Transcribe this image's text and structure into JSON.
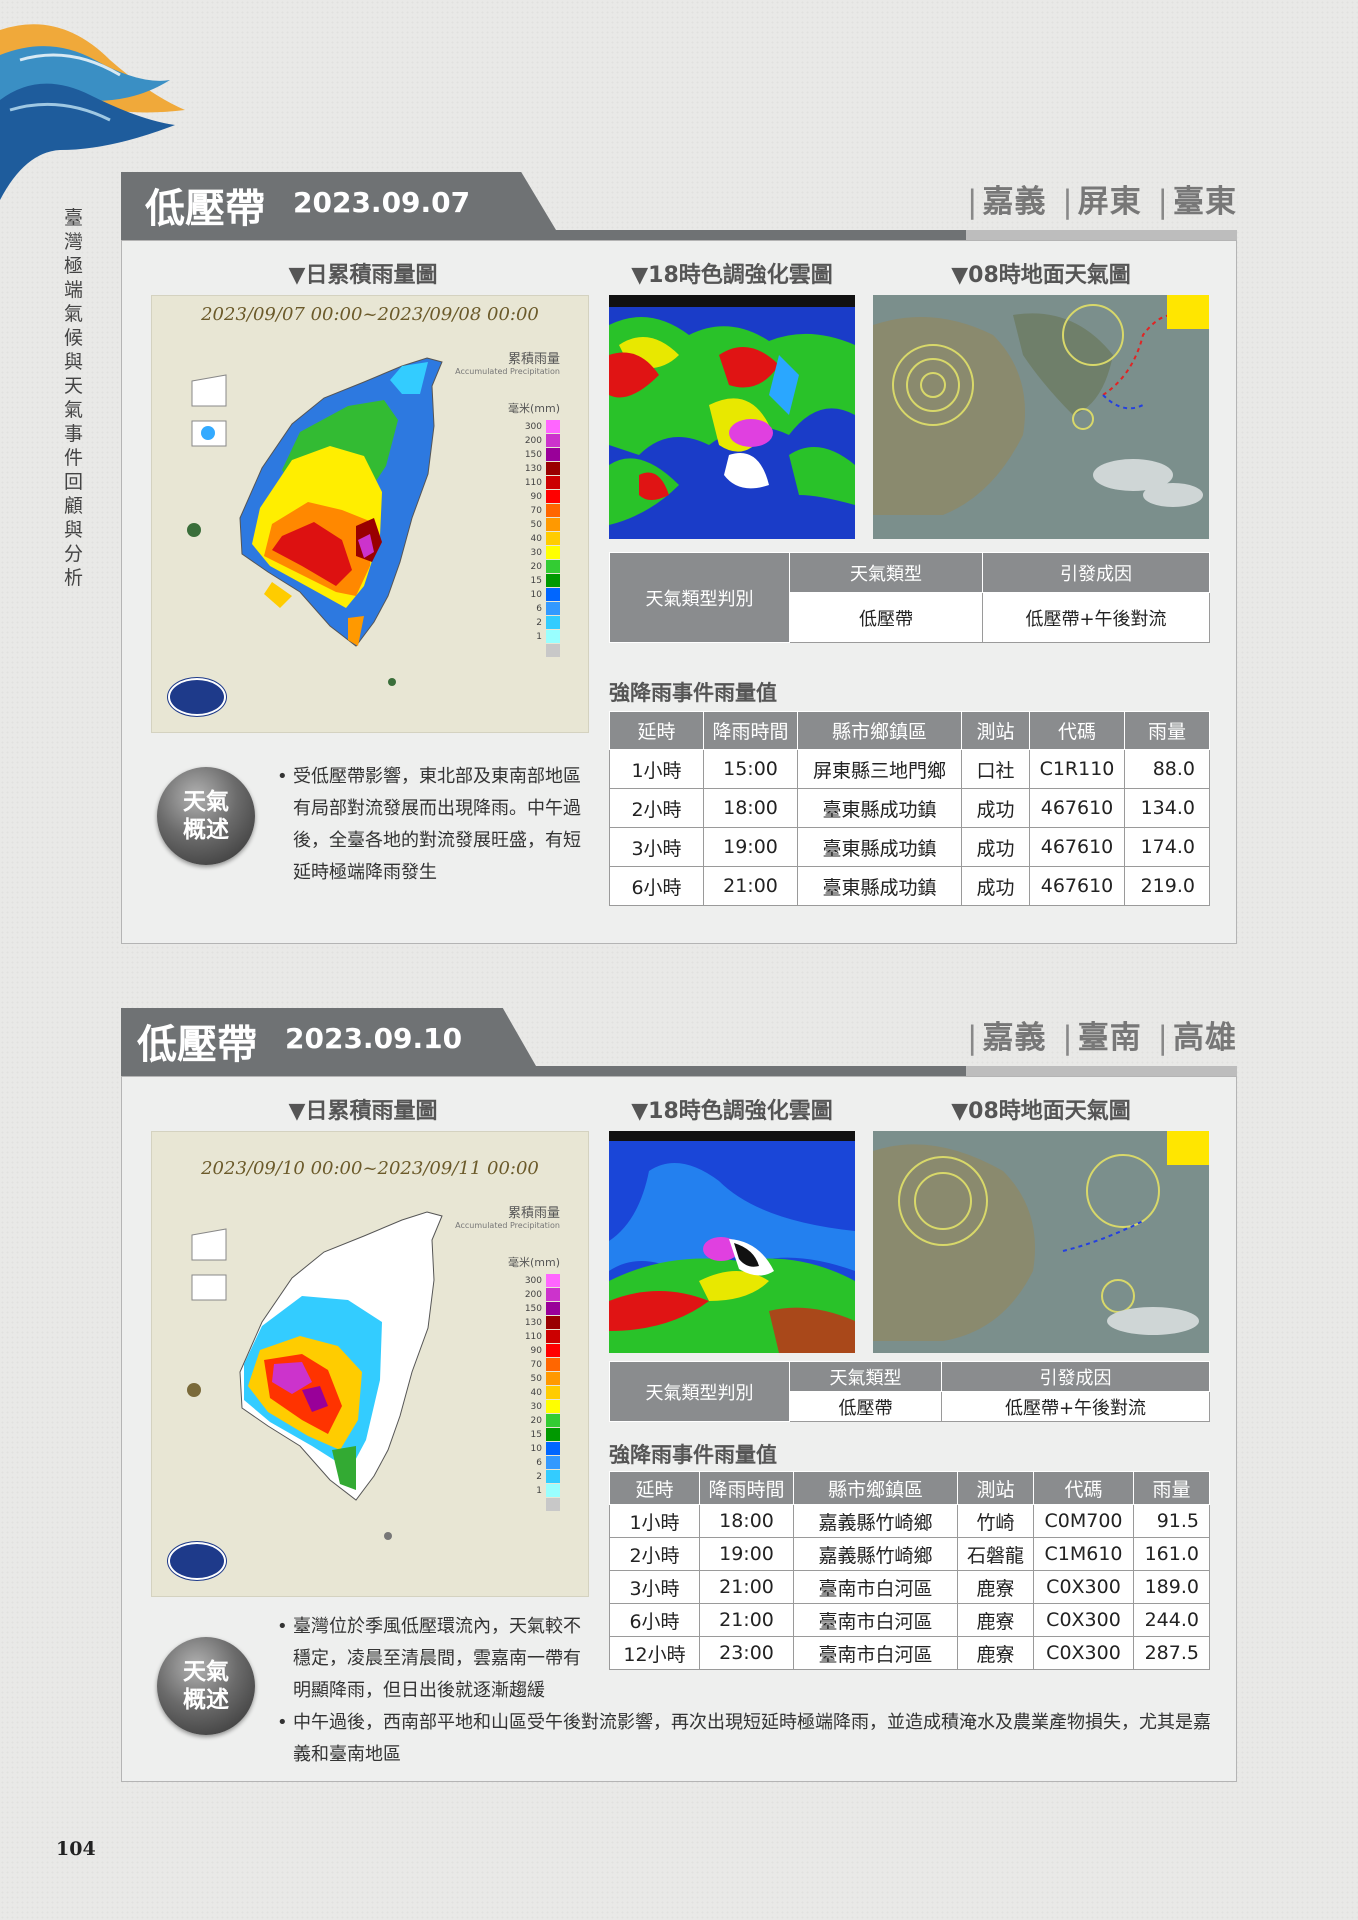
{
  "sidebar": {
    "title": "臺灣極端氣候與天氣事件回顧與分析"
  },
  "page_number": "104",
  "sections": [
    {
      "type": "低壓帶",
      "date": "2023.09.07",
      "regions": [
        "嘉義",
        "屏東",
        "臺東"
      ],
      "col_titles": [
        "▼日累積雨量圖",
        "▼18時色調強化雲圖",
        "▼08時地面天氣圖"
      ],
      "rain_map": {
        "date_range": "2023/09/07 00:00~2023/09/08 00:00",
        "legend_title": "累積雨量",
        "legend_subtitle": "Accumulated Precipitation",
        "legend_unit": "毫米(mm)"
      },
      "classification": {
        "row_label": "天氣類型判別",
        "headers": [
          "天氣類型",
          "引發成因"
        ],
        "values": [
          "低壓帶",
          "低壓帶+午後對流"
        ]
      },
      "events_title": "強降雨事件雨量值",
      "events_headers": [
        "延時",
        "降雨時間",
        "縣市鄉鎮區",
        "測站",
        "代碼",
        "雨量"
      ],
      "events_rows": [
        [
          "1小時",
          "15:00",
          "屏東縣三地門鄉",
          "口社",
          "C1R110",
          "88.0"
        ],
        [
          "2小時",
          "18:00",
          "臺東縣成功鎮",
          "成功",
          "467610",
          "134.0"
        ],
        [
          "3小時",
          "19:00",
          "臺東縣成功鎮",
          "成功",
          "467610",
          "174.0"
        ],
        [
          "6小時",
          "21:00",
          "臺東縣成功鎮",
          "成功",
          "467610",
          "219.0"
        ]
      ],
      "summary_badge": [
        "天氣",
        "概述"
      ],
      "summary": [
        "受低壓帶影響，東北部及東南部地區有局部對流發展而出現降雨。中午過後，全臺各地的對流發展旺盛，有短延時極端降雨發生"
      ]
    },
    {
      "type": "低壓帶",
      "date": "2023.09.10",
      "regions": [
        "嘉義",
        "臺南",
        "高雄"
      ],
      "col_titles": [
        "▼日累積雨量圖",
        "▼18時色調強化雲圖",
        "▼08時地面天氣圖"
      ],
      "rain_map": {
        "date_range": "2023/09/10 00:00~2023/09/11 00:00",
        "legend_title": "累積雨量",
        "legend_subtitle": "Accumulated Precipitation",
        "legend_unit": "毫米(mm)"
      },
      "classification": {
        "row_label": "天氣類型判別",
        "headers": [
          "天氣類型",
          "引發成因"
        ],
        "values": [
          "低壓帶",
          "低壓帶+午後對流"
        ]
      },
      "events_title": "強降雨事件雨量值",
      "events_headers": [
        "延時",
        "降雨時間",
        "縣市鄉鎮區",
        "測站",
        "代碼",
        "雨量"
      ],
      "events_rows": [
        [
          "1小時",
          "18:00",
          "嘉義縣竹崎鄉",
          "竹崎",
          "C0M700",
          "91.5"
        ],
        [
          "2小時",
          "19:00",
          "嘉義縣竹崎鄉",
          "石磐龍",
          "C1M610",
          "161.0"
        ],
        [
          "3小時",
          "21:00",
          "臺南市白河區",
          "鹿寮",
          "C0X300",
          "189.0"
        ],
        [
          "6小時",
          "21:00",
          "臺南市白河區",
          "鹿寮",
          "C0X300",
          "244.0"
        ],
        [
          "12小時",
          "23:00",
          "臺南市白河區",
          "鹿寮",
          "C0X300",
          "287.5"
        ]
      ],
      "summary_badge": [
        "天氣",
        "概述"
      ],
      "summary": [
        "臺灣位於季風低壓環流內，天氣較不穩定，凌晨至清晨間，雲嘉南一帶有明顯降雨，但日出後就逐漸趨緩",
        "中午過後，西南部平地和山區受午後對流影響，再次出現短延時極端降雨，並造成積淹水及農業產物損失，尤其是嘉義和臺南地區"
      ]
    }
  ],
  "legend": {
    "labels": [
      "300",
      "200",
      "150",
      "130",
      "110",
      "90",
      "70",
      "50",
      "40",
      "30",
      "20",
      "15",
      "10",
      "6",
      "2",
      "1"
    ],
    "colors": [
      "#ff66ff",
      "#cc33cc",
      "#990099",
      "#990000",
      "#cc0000",
      "#ff0000",
      "#ff6600",
      "#ff9900",
      "#ffcc00",
      "#ffff00",
      "#33cc33",
      "#009900",
      "#0066ff",
      "#3399ff",
      "#33ccff",
      "#99ffff"
    ],
    "zero_color": "#c8c8c8"
  }
}
